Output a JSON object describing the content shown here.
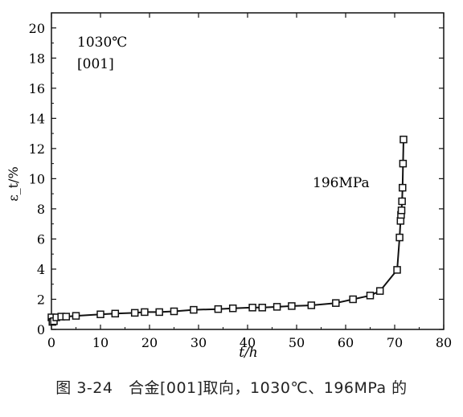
{
  "caption": "图 3-24　合金[001]取向，1030℃、196MPa 的",
  "chart_data": {
    "type": "line",
    "xlabel": "t/h",
    "ylabel": "ε_t/%",
    "xlim": [
      0,
      80
    ],
    "ylim": [
      0,
      21
    ],
    "xticks": [
      0,
      10,
      20,
      30,
      40,
      50,
      60,
      70,
      80
    ],
    "yticks": [
      0,
      2,
      4,
      6,
      8,
      10,
      12,
      14,
      16,
      18,
      20
    ],
    "annotations": [
      "1030℃",
      "[001]",
      "196MPa"
    ],
    "grid": false,
    "series": [
      {
        "name": "196MPa",
        "marker": "square",
        "x": [
          0,
          0.2,
          0.5,
          1,
          2,
          3,
          5,
          10,
          13,
          17,
          19,
          22,
          25,
          29,
          34,
          37,
          41,
          43,
          46,
          49,
          53,
          58,
          61.5,
          65,
          67,
          70.5,
          71,
          71.2,
          71.3,
          71.4,
          71.5,
          71.6,
          71.7,
          71.8
        ],
        "y": [
          0.8,
          0.5,
          0.55,
          0.8,
          0.85,
          0.85,
          0.9,
          1.0,
          1.05,
          1.1,
          1.15,
          1.15,
          1.2,
          1.3,
          1.35,
          1.4,
          1.45,
          1.45,
          1.5,
          1.55,
          1.6,
          1.75,
          2.0,
          2.25,
          2.55,
          3.95,
          6.1,
          7.2,
          7.6,
          7.9,
          8.5,
          9.4,
          11.0,
          12.6
        ]
      }
    ]
  }
}
